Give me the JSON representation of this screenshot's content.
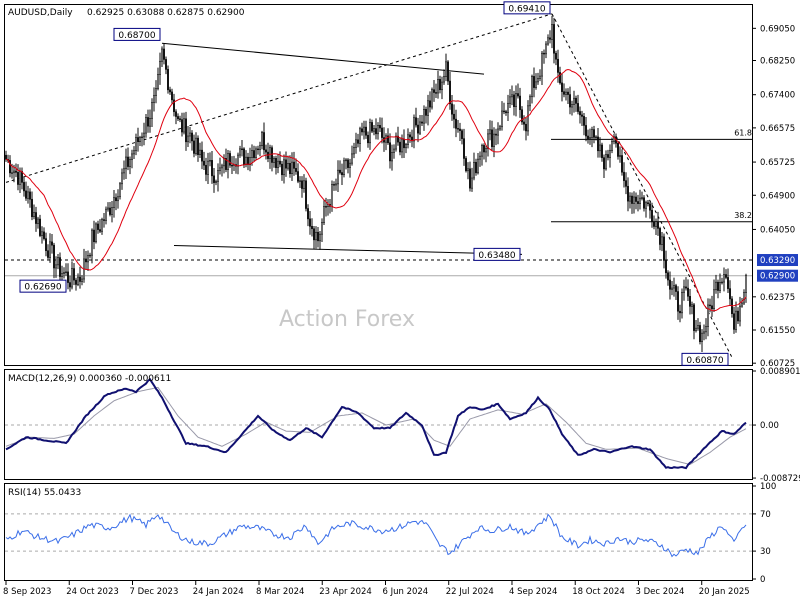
{
  "header": {
    "symbol": "AUDUSD,Daily",
    "ohlc": "0.62925 0.63088 0.62875 0.62900"
  },
  "watermark": "Action Forex",
  "colors": {
    "candle": "#0a0a0a",
    "ma": "#e0000f",
    "macd": "#101070",
    "signal": "#9a9aaa",
    "rsi": "#3a6ee8",
    "line": "#000000",
    "grid": "#888888",
    "label_border": "#000080",
    "price_badge": "#2040c0"
  },
  "chart_data": [
    {
      "type": "candlestick",
      "panel": "price",
      "ylim": [
        0.6068,
        0.6963
      ],
      "price_ticks": [
        "0.69050",
        "0.68250",
        "0.67400",
        "0.66575",
        "0.65725",
        "0.64900",
        "0.64050",
        "0.63290",
        "0.62900",
        "0.62375",
        "0.61550",
        "0.60725"
      ],
      "current_price": "0.62900",
      "marked_level": "0.63290",
      "x_ticks": [
        "8 Sep 2023",
        "24 Oct 2023",
        "7 Dec 2023",
        "24 Jan 2024",
        "8 Mar 2024",
        "23 Apr 2024",
        "6 Jun 2024",
        "22 Jul 2024",
        "4 Sep 2024",
        "18 Oct 2024",
        "3 Dec 2024",
        "20 Jan 2025"
      ],
      "annotations": [
        {
          "label": "0.68700",
          "value": 0.687
        },
        {
          "label": "0.69410",
          "value": 0.6941
        },
        {
          "label": "0.63480",
          "value": 0.6348
        },
        {
          "label": "0.62690",
          "value": 0.6269
        },
        {
          "label": "0.60870",
          "value": 0.6087
        }
      ],
      "fib_levels": [
        {
          "label": "61.8",
          "value": 0.6629
        },
        {
          "label": "38.2",
          "value": 0.6424
        }
      ],
      "anchors": [
        {
          "t": 0,
          "p": 0.658
        },
        {
          "t": 6,
          "p": 0.654
        },
        {
          "t": 13,
          "p": 0.646
        },
        {
          "t": 20,
          "p": 0.637
        },
        {
          "t": 26,
          "p": 0.631
        },
        {
          "t": 32,
          "p": 0.628
        },
        {
          "t": 37,
          "p": 0.6285
        },
        {
          "t": 43,
          "p": 0.638
        },
        {
          "t": 51,
          "p": 0.645
        },
        {
          "t": 60,
          "p": 0.656
        },
        {
          "t": 70,
          "p": 0.667
        },
        {
          "t": 75,
          "p": 0.673
        },
        {
          "t": 78,
          "p": 0.684
        },
        {
          "t": 80,
          "p": 0.68
        },
        {
          "t": 86,
          "p": 0.667
        },
        {
          "t": 92,
          "p": 0.664
        },
        {
          "t": 98,
          "p": 0.657
        },
        {
          "t": 106,
          "p": 0.654
        },
        {
          "t": 113,
          "p": 0.659
        },
        {
          "t": 120,
          "p": 0.6585
        },
        {
          "t": 128,
          "p": 0.663
        },
        {
          "t": 135,
          "p": 0.658
        },
        {
          "t": 140,
          "p": 0.656
        },
        {
          "t": 148,
          "p": 0.653
        },
        {
          "t": 152,
          "p": 0.643
        },
        {
          "t": 156,
          "p": 0.638
        },
        {
          "t": 160,
          "p": 0.646
        },
        {
          "t": 166,
          "p": 0.653
        },
        {
          "t": 172,
          "p": 0.657
        },
        {
          "t": 178,
          "p": 0.664
        },
        {
          "t": 186,
          "p": 0.665
        },
        {
          "t": 192,
          "p": 0.66
        },
        {
          "t": 198,
          "p": 0.662
        },
        {
          "t": 206,
          "p": 0.667
        },
        {
          "t": 212,
          "p": 0.672
        },
        {
          "t": 216,
          "p": 0.676
        },
        {
          "t": 220,
          "p": 0.68
        },
        {
          "t": 224,
          "p": 0.668
        },
        {
          "t": 228,
          "p": 0.664
        },
        {
          "t": 232,
          "p": 0.651
        },
        {
          "t": 234,
          "p": 0.655
        },
        {
          "t": 238,
          "p": 0.662
        },
        {
          "t": 244,
          "p": 0.664
        },
        {
          "t": 250,
          "p": 0.671
        },
        {
          "t": 256,
          "p": 0.672
        },
        {
          "t": 260,
          "p": 0.667
        },
        {
          "t": 263,
          "p": 0.676
        },
        {
          "t": 266,
          "p": 0.679
        },
        {
          "t": 270,
          "p": 0.685
        },
        {
          "t": 273,
          "p": 0.691
        },
        {
          "t": 276,
          "p": 0.677
        },
        {
          "t": 282,
          "p": 0.673
        },
        {
          "t": 288,
          "p": 0.668
        },
        {
          "t": 294,
          "p": 0.662
        },
        {
          "t": 300,
          "p": 0.657
        },
        {
          "t": 304,
          "p": 0.666
        },
        {
          "t": 308,
          "p": 0.653
        },
        {
          "t": 312,
          "p": 0.649
        },
        {
          "t": 318,
          "p": 0.648
        },
        {
          "t": 324,
          "p": 0.644
        },
        {
          "t": 328,
          "p": 0.638
        },
        {
          "t": 332,
          "p": 0.626
        },
        {
          "t": 336,
          "p": 0.622
        },
        {
          "t": 340,
          "p": 0.624
        },
        {
          "t": 344,
          "p": 0.618
        },
        {
          "t": 348,
          "p": 0.614
        },
        {
          "t": 352,
          "p": 0.621
        },
        {
          "t": 356,
          "p": 0.628
        },
        {
          "t": 360,
          "p": 0.631
        },
        {
          "t": 364,
          "p": 0.6155
        },
        {
          "t": 366,
          "p": 0.62
        },
        {
          "t": 370,
          "p": 0.629
        }
      ]
    },
    {
      "type": "line",
      "panel": "macd",
      "title": "MACD(12,26,9) 0.000360 -0.000611",
      "ylim": [
        -0.00872,
        0.0089
      ],
      "y_ticks": [
        "0.008901",
        "0.00",
        "-0.008729"
      ],
      "series": [
        {
          "role": "macd",
          "points": [
            {
              "t": 0,
              "v": -0.004
            },
            {
              "t": 10,
              "v": -0.002
            },
            {
              "t": 20,
              "v": -0.0025
            },
            {
              "t": 30,
              "v": -0.003
            },
            {
              "t": 40,
              "v": 0.0015
            },
            {
              "t": 50,
              "v": 0.005
            },
            {
              "t": 60,
              "v": 0.006
            },
            {
              "t": 65,
              "v": 0.0055
            },
            {
              "t": 72,
              "v": 0.0075
            },
            {
              "t": 78,
              "v": 0.0045
            },
            {
              "t": 90,
              "v": -0.003
            },
            {
              "t": 100,
              "v": -0.0035
            },
            {
              "t": 110,
              "v": -0.0045
            },
            {
              "t": 118,
              "v": -0.0015
            },
            {
              "t": 126,
              "v": 0.0015
            },
            {
              "t": 134,
              "v": -0.001
            },
            {
              "t": 142,
              "v": -0.0025
            },
            {
              "t": 150,
              "v": -0.0005
            },
            {
              "t": 158,
              "v": -0.002
            },
            {
              "t": 168,
              "v": 0.003
            },
            {
              "t": 176,
              "v": 0.002
            },
            {
              "t": 184,
              "v": -0.0005
            },
            {
              "t": 192,
              "v": -0.0005
            },
            {
              "t": 200,
              "v": 0.002
            },
            {
              "t": 208,
              "v": 0.0
            },
            {
              "t": 214,
              "v": -0.005
            },
            {
              "t": 220,
              "v": -0.0045
            },
            {
              "t": 226,
              "v": 0.0015
            },
            {
              "t": 232,
              "v": 0.003
            },
            {
              "t": 238,
              "v": 0.0025
            },
            {
              "t": 246,
              "v": 0.0035
            },
            {
              "t": 252,
              "v": 0.001
            },
            {
              "t": 260,
              "v": 0.002
            },
            {
              "t": 266,
              "v": 0.0045
            },
            {
              "t": 272,
              "v": 0.0025
            },
            {
              "t": 278,
              "v": -0.0015
            },
            {
              "t": 286,
              "v": -0.005
            },
            {
              "t": 294,
              "v": -0.004
            },
            {
              "t": 302,
              "v": -0.0045
            },
            {
              "t": 312,
              "v": -0.0035
            },
            {
              "t": 322,
              "v": -0.004
            },
            {
              "t": 330,
              "v": -0.007
            },
            {
              "t": 340,
              "v": -0.007
            },
            {
              "t": 350,
              "v": -0.0035
            },
            {
              "t": 358,
              "v": -0.001
            },
            {
              "t": 364,
              "v": -0.0015
            },
            {
              "t": 370,
              "v": 0.0004
            }
          ]
        },
        {
          "role": "signal",
          "points": [
            {
              "t": 0,
              "v": -0.0035
            },
            {
              "t": 12,
              "v": -0.002
            },
            {
              "t": 24,
              "v": -0.0022
            },
            {
              "t": 34,
              "v": -0.0015
            },
            {
              "t": 44,
              "v": 0.0015
            },
            {
              "t": 54,
              "v": 0.004
            },
            {
              "t": 66,
              "v": 0.0055
            },
            {
              "t": 76,
              "v": 0.0062
            },
            {
              "t": 86,
              "v": 0.0015
            },
            {
              "t": 96,
              "v": -0.002
            },
            {
              "t": 108,
              "v": -0.0035
            },
            {
              "t": 120,
              "v": -0.0015
            },
            {
              "t": 130,
              "v": 0.0005
            },
            {
              "t": 140,
              "v": -0.001
            },
            {
              "t": 152,
              "v": -0.0012
            },
            {
              "t": 166,
              "v": 0.0015
            },
            {
              "t": 178,
              "v": 0.002
            },
            {
              "t": 190,
              "v": 0.0
            },
            {
              "t": 204,
              "v": 0.001
            },
            {
              "t": 214,
              "v": -0.0025
            },
            {
              "t": 222,
              "v": -0.0035
            },
            {
              "t": 232,
              "v": 0.001
            },
            {
              "t": 246,
              "v": 0.0025
            },
            {
              "t": 258,
              "v": 0.0018
            },
            {
              "t": 270,
              "v": 0.0035
            },
            {
              "t": 280,
              "v": 0.0005
            },
            {
              "t": 290,
              "v": -0.003
            },
            {
              "t": 300,
              "v": -0.004
            },
            {
              "t": 316,
              "v": -0.0038
            },
            {
              "t": 330,
              "v": -0.0055
            },
            {
              "t": 342,
              "v": -0.0065
            },
            {
              "t": 352,
              "v": -0.0045
            },
            {
              "t": 362,
              "v": -0.002
            },
            {
              "t": 370,
              "v": -0.0006
            }
          ]
        }
      ]
    },
    {
      "type": "line",
      "panel": "rsi",
      "title": "RSI(14) 55.0433",
      "ylim": [
        0,
        100
      ],
      "y_ticks": [
        "100",
        "70",
        "30",
        "0"
      ],
      "series": [
        {
          "role": "rsi",
          "points": [
            {
              "t": 0,
              "v": 42
            },
            {
              "t": 8,
              "v": 52
            },
            {
              "t": 16,
              "v": 45
            },
            {
              "t": 26,
              "v": 40
            },
            {
              "t": 34,
              "v": 48
            },
            {
              "t": 42,
              "v": 58
            },
            {
              "t": 52,
              "v": 55
            },
            {
              "t": 62,
              "v": 66
            },
            {
              "t": 70,
              "v": 58
            },
            {
              "t": 76,
              "v": 70
            },
            {
              "t": 84,
              "v": 50
            },
            {
              "t": 92,
              "v": 40
            },
            {
              "t": 102,
              "v": 38
            },
            {
              "t": 110,
              "v": 48
            },
            {
              "t": 118,
              "v": 57
            },
            {
              "t": 126,
              "v": 55
            },
            {
              "t": 134,
              "v": 48
            },
            {
              "t": 142,
              "v": 45
            },
            {
              "t": 150,
              "v": 58
            },
            {
              "t": 156,
              "v": 38
            },
            {
              "t": 164,
              "v": 55
            },
            {
              "t": 172,
              "v": 60
            },
            {
              "t": 180,
              "v": 56
            },
            {
              "t": 188,
              "v": 52
            },
            {
              "t": 196,
              "v": 55
            },
            {
              "t": 204,
              "v": 62
            },
            {
              "t": 210,
              "v": 60
            },
            {
              "t": 216,
              "v": 38
            },
            {
              "t": 222,
              "v": 28
            },
            {
              "t": 228,
              "v": 40
            },
            {
              "t": 236,
              "v": 55
            },
            {
              "t": 244,
              "v": 52
            },
            {
              "t": 252,
              "v": 57
            },
            {
              "t": 260,
              "v": 48
            },
            {
              "t": 268,
              "v": 62
            },
            {
              "t": 272,
              "v": 68
            },
            {
              "t": 278,
              "v": 45
            },
            {
              "t": 286,
              "v": 36
            },
            {
              "t": 292,
              "v": 42
            },
            {
              "t": 300,
              "v": 38
            },
            {
              "t": 306,
              "v": 44
            },
            {
              "t": 312,
              "v": 40
            },
            {
              "t": 320,
              "v": 42
            },
            {
              "t": 328,
              "v": 36
            },
            {
              "t": 334,
              "v": 25
            },
            {
              "t": 340,
              "v": 32
            },
            {
              "t": 346,
              "v": 28
            },
            {
              "t": 352,
              "v": 45
            },
            {
              "t": 358,
              "v": 58
            },
            {
              "t": 364,
              "v": 38
            },
            {
              "t": 368,
              "v": 56
            },
            {
              "t": 370,
              "v": 55
            }
          ]
        }
      ]
    }
  ]
}
